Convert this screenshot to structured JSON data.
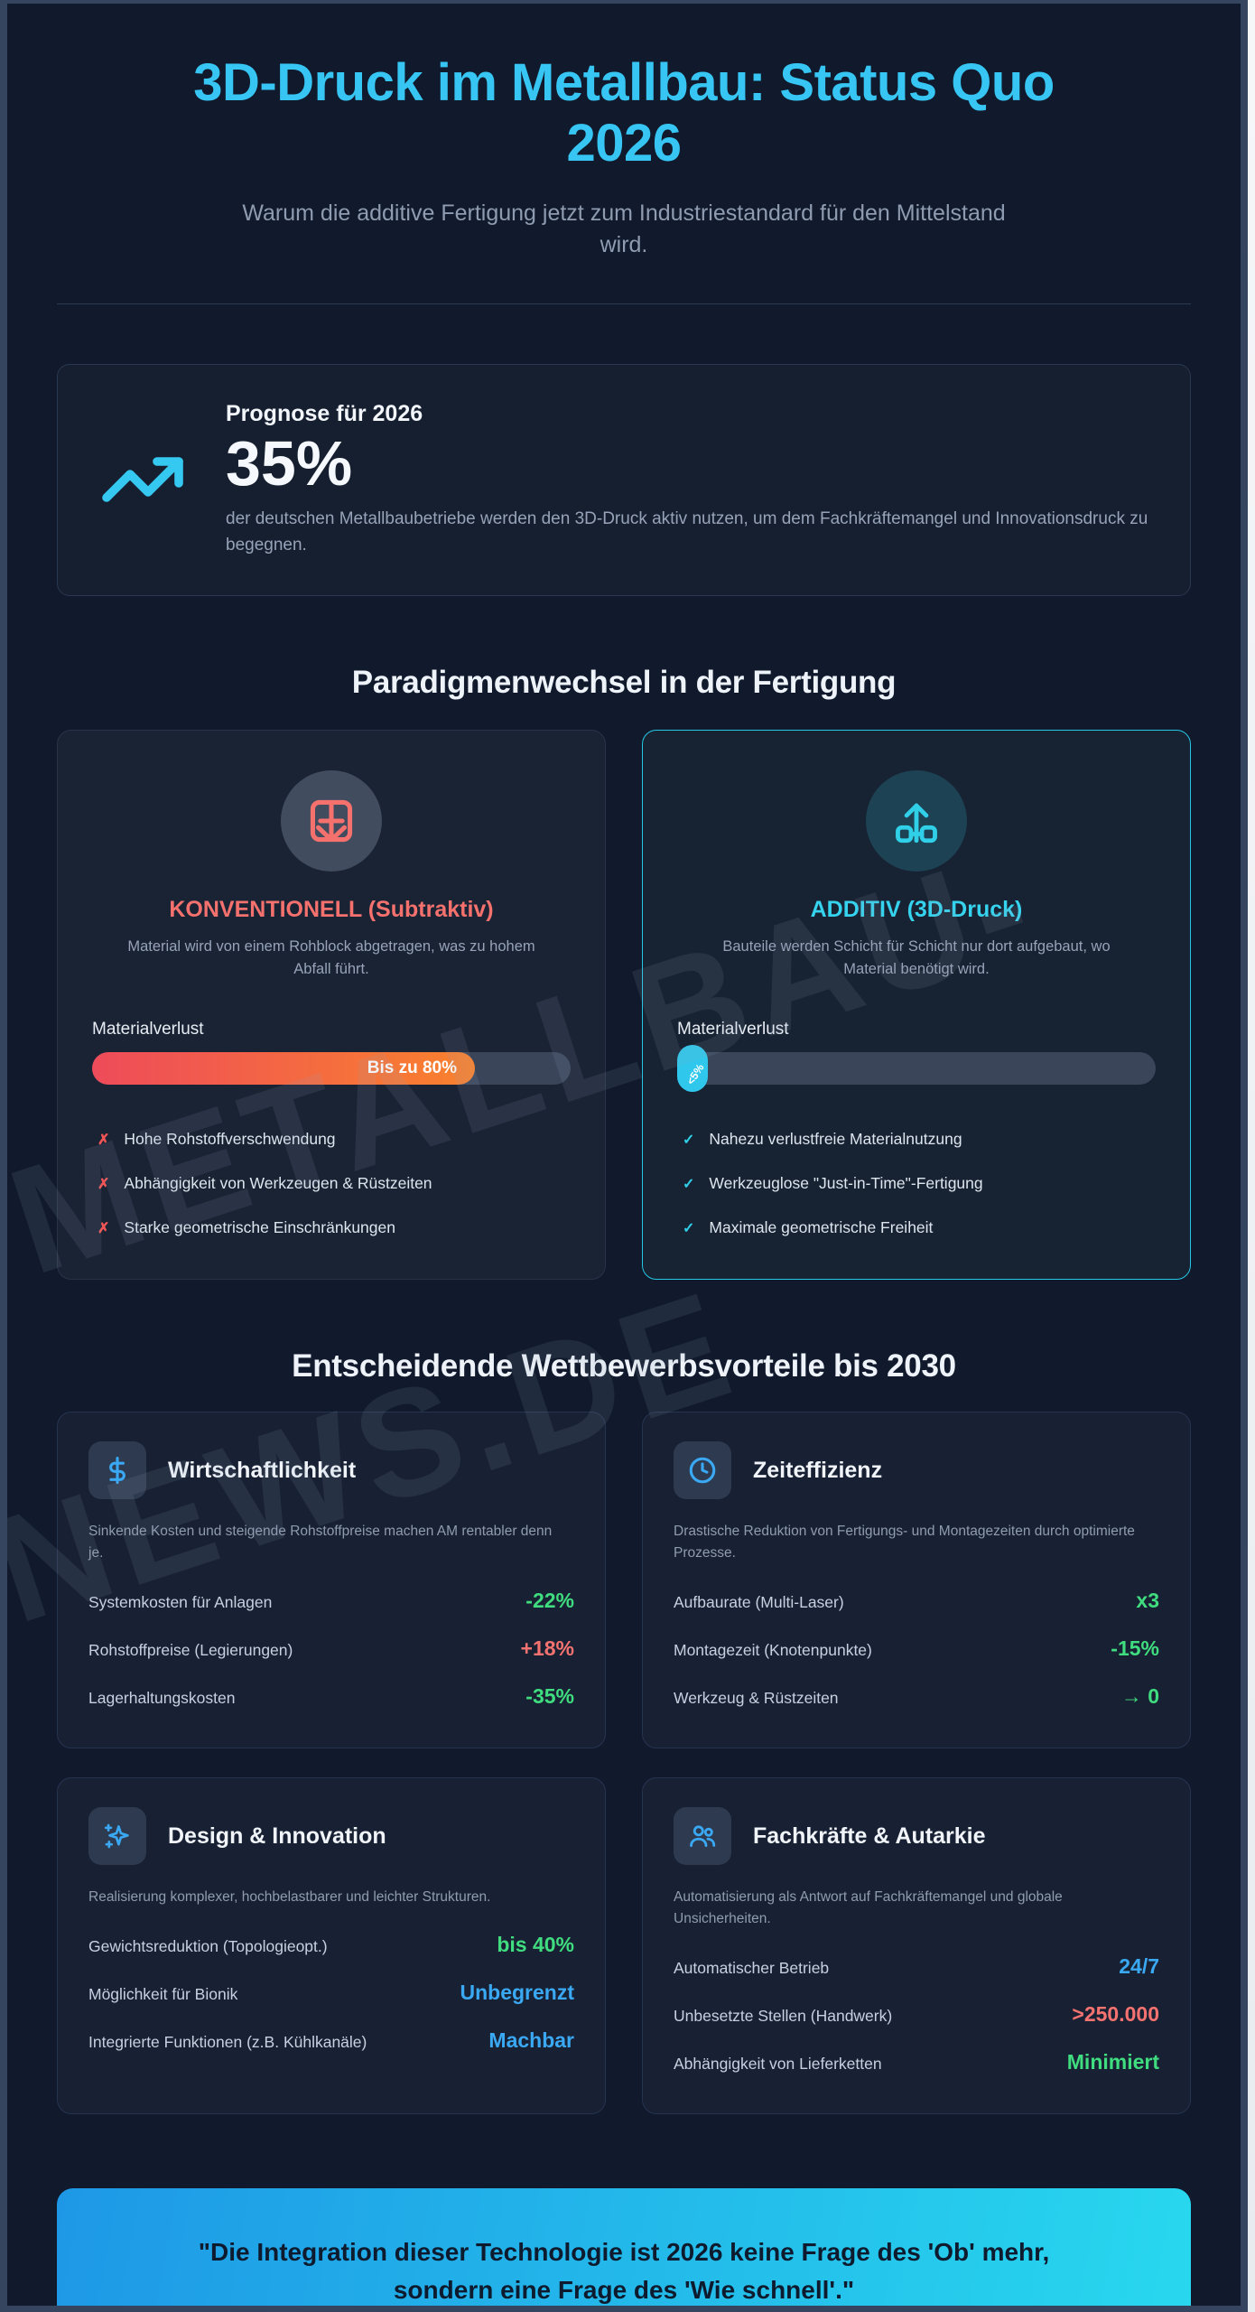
{
  "header": {
    "title": "3D-Druck im Metallbau: Status Quo 2026",
    "subtitle": "Warum die additive Fertigung jetzt zum Industriestandard für den Mittelstand wird."
  },
  "watermark": {
    "line1": "METALLBAU-",
    "line2": "NEWS.DE"
  },
  "prognosis": {
    "label": "Prognose für 2026",
    "value": "35%",
    "description": "der deutschen Metallbaubetriebe werden den 3D-Druck aktiv nutzen, um dem Fachkräftemangel und Innovationsdruck zu begegnen."
  },
  "paradigm": {
    "heading": "Paradigmenwechsel in der Fertigung",
    "conventional": {
      "title": "KONVENTIONELL (Subtraktiv)",
      "description": "Material wird von einem Rohblock abgetragen, was zu hohem Abfall führt.",
      "bar_label": "Materialverlust",
      "bar_percent": 80,
      "bar_value_label": "Bis zu 80%",
      "points": [
        {
          "mark": "✗",
          "text": "Hohe Rohstoffverschwendung"
        },
        {
          "mark": "✗",
          "text": "Abhängigkeit von Werkzeugen & Rüstzeiten"
        },
        {
          "mark": "✗",
          "text": "Starke geometrische Einschränkungen"
        }
      ]
    },
    "additive": {
      "title": "ADDITIV (3D-Druck)",
      "description": "Bauteile werden Schicht für Schicht nur dort aufgebaut, wo Material benötigt wird.",
      "bar_label": "Materialverlust",
      "bar_percent": 5,
      "bar_value_label": "<5%",
      "points": [
        {
          "mark": "✓",
          "text": "Nahezu verlustfreie Materialnutzung"
        },
        {
          "mark": "✓",
          "text": "Werkzeuglose \"Just-in-Time\"-Fertigung"
        },
        {
          "mark": "✓",
          "text": "Maximale geometrische Freiheit"
        }
      ]
    }
  },
  "benefits": {
    "heading": "Entscheidende Wettbewerbsvorteile bis 2030",
    "cards": [
      {
        "icon": "dollar-icon",
        "title": "Wirtschaftlichkeit",
        "description": "Sinkende Kosten und steigende Rohstoffpreise machen AM rentabler denn je.",
        "rows": [
          {
            "label": "Systemkosten für Anlagen",
            "value": "-22%",
            "color": "green"
          },
          {
            "label": "Rohstoffpreise (Legierungen)",
            "value": "+18%",
            "color": "red"
          },
          {
            "label": "Lagerhaltungskosten",
            "value": "-35%",
            "color": "green"
          }
        ]
      },
      {
        "icon": "clock-icon",
        "title": "Zeiteffizienz",
        "description": "Drastische Reduktion von Fertigungs- und Montagezeiten durch optimierte Prozesse.",
        "rows": [
          {
            "label": "Aufbaurate (Multi-Laser)",
            "value": "x3",
            "color": "green"
          },
          {
            "label": "Montagezeit (Knotenpunkte)",
            "value": "-15%",
            "color": "green"
          },
          {
            "label": "Werkzeug & Rüstzeiten",
            "value": "→ 0",
            "color": "green"
          }
        ]
      },
      {
        "icon": "sparkles-icon",
        "title": "Design & Innovation",
        "description": "Realisierung komplexer, hochbelastbarer und leichter Strukturen.",
        "rows": [
          {
            "label": "Gewichtsreduktion (Topologieopt.)",
            "value": "bis 40%",
            "color": "green"
          },
          {
            "label": "Möglichkeit für Bionik",
            "value": "Unbegrenzt",
            "color": "blue"
          },
          {
            "label": "Integrierte Funktionen (z.B. Kühlkanäle)",
            "value": "Machbar",
            "color": "blue"
          }
        ]
      },
      {
        "icon": "users-icon",
        "title": "Fachkräfte & Autarkie",
        "description": "Automatisierung als Antwort auf Fachkräftemangel und globale Unsicherheiten.",
        "rows": [
          {
            "label": "Automatischer Betrieb",
            "value": "24/7",
            "color": "blue"
          },
          {
            "label": "Unbesetzte Stellen (Handwerk)",
            "value": ">250.000",
            "color": "red"
          },
          {
            "label": "Abhängigkeit von Lieferketten",
            "value": "Minimiert",
            "color": "green"
          }
        ]
      }
    ]
  },
  "quote": {
    "text": "\"Die Integration dieser Technologie ist 2026 keine Frage des 'Ob' mehr, sondern eine Frage des 'Wie schnell'.\""
  },
  "colors": {
    "accent_cyan": "#35c8f0",
    "red": "#f4726f",
    "green": "#3fdd7f",
    "blue": "#3aa8f2",
    "bar_gradient": [
      "#ee4b5a",
      "#f9822d"
    ],
    "quote_gradient": [
      "#1e98e6",
      "#28d8ee"
    ]
  }
}
